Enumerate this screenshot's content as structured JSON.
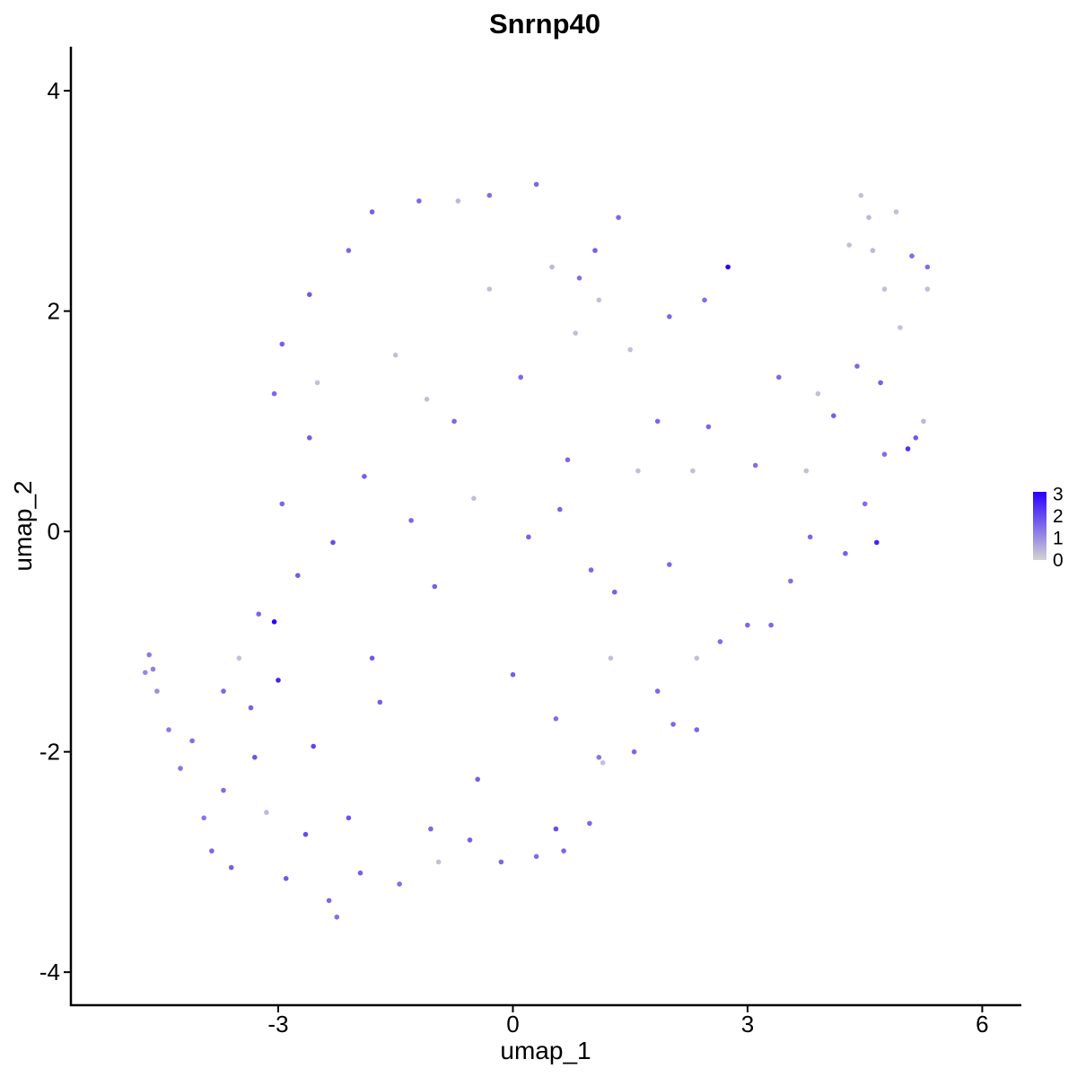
{
  "chart_data": {
    "type": "scatter",
    "title": "Snrnp40",
    "xlabel": "umap_1",
    "ylabel": "umap_2",
    "xlim": [
      -5.65,
      6.5
    ],
    "ylim": [
      -4.3,
      4.4
    ],
    "x_ticks": [
      -3,
      0,
      3,
      6
    ],
    "y_ticks": [
      -4,
      -2,
      0,
      2,
      4
    ],
    "x_tick_labels": [
      "-3",
      "0",
      "3",
      "6"
    ],
    "y_tick_labels": [
      "-4",
      "-2",
      "0",
      "2",
      "4"
    ],
    "grid": false,
    "legend": {
      "placement": "right",
      "type": "color-gradient",
      "low_color": "#d3d3d3",
      "high_color": "#2a00ff",
      "range": [
        0,
        3.1
      ],
      "ticks": [
        3,
        2,
        1,
        0
      ],
      "tick_labels": [
        "3",
        "2",
        "1",
        "0"
      ]
    },
    "colors": {
      "low": "#d3d3d3",
      "high": "#2a00ff"
    },
    "series": [
      {
        "points": [
          {
            "x": -4.7,
            "y": -1.28,
            "v": 1.1
          },
          {
            "x": -4.65,
            "y": -1.12,
            "v": 1.3
          },
          {
            "x": -4.6,
            "y": -1.25,
            "v": 1.2
          },
          {
            "x": -4.55,
            "y": -1.45,
            "v": 1.0
          },
          {
            "x": -4.4,
            "y": -1.8,
            "v": 1.3
          },
          {
            "x": -4.25,
            "y": -2.15,
            "v": 1.4
          },
          {
            "x": -4.1,
            "y": -1.9,
            "v": 1.5
          },
          {
            "x": -3.95,
            "y": -2.6,
            "v": 1.4
          },
          {
            "x": -3.85,
            "y": -2.9,
            "v": 1.6
          },
          {
            "x": -3.7,
            "y": -2.35,
            "v": 1.5
          },
          {
            "x": -3.6,
            "y": -3.05,
            "v": 1.7
          },
          {
            "x": -3.5,
            "y": -1.15,
            "v": 0.3
          },
          {
            "x": -3.35,
            "y": -1.6,
            "v": 1.7
          },
          {
            "x": -3.25,
            "y": -0.75,
            "v": 1.6
          },
          {
            "x": -3.05,
            "y": -0.82,
            "v": 3.1
          },
          {
            "x": -3.0,
            "y": -1.35,
            "v": 2.6
          },
          {
            "x": -3.15,
            "y": -2.55,
            "v": 0.4
          },
          {
            "x": -2.9,
            "y": -3.15,
            "v": 1.8
          },
          {
            "x": -2.75,
            "y": -0.4,
            "v": 1.8
          },
          {
            "x": -2.55,
            "y": -1.95,
            "v": 2.1
          },
          {
            "x": -2.35,
            "y": -3.35,
            "v": 1.6
          },
          {
            "x": -2.25,
            "y": -3.5,
            "v": 1.5
          },
          {
            "x": -2.1,
            "y": -2.6,
            "v": 1.9
          },
          {
            "x": -1.95,
            "y": -3.1,
            "v": 1.7
          },
          {
            "x": -1.45,
            "y": -3.2,
            "v": 1.5
          },
          {
            "x": -1.05,
            "y": -2.7,
            "v": 1.6
          },
          {
            "x": -0.95,
            "y": -3.0,
            "v": 0.3
          },
          {
            "x": -0.55,
            "y": -2.8,
            "v": 1.7
          },
          {
            "x": -0.15,
            "y": -3.0,
            "v": 1.6
          },
          {
            "x": 0.3,
            "y": -2.95,
            "v": 1.5
          },
          {
            "x": 0.55,
            "y": -2.7,
            "v": 2.0
          },
          {
            "x": 0.65,
            "y": -2.9,
            "v": 1.6
          },
          {
            "x": 0.98,
            "y": -2.65,
            "v": 1.6
          },
          {
            "x": 1.1,
            "y": -2.05,
            "v": 1.4
          },
          {
            "x": 1.15,
            "y": -2.1,
            "v": 0.3
          },
          {
            "x": 1.25,
            "y": -1.15,
            "v": 0.3
          },
          {
            "x": 1.55,
            "y": -2.0,
            "v": 1.6
          },
          {
            "x": 1.85,
            "y": -1.45,
            "v": 1.6
          },
          {
            "x": 2.05,
            "y": -1.75,
            "v": 1.6
          },
          {
            "x": 2.35,
            "y": -1.15,
            "v": 0.3
          },
          {
            "x": 2.35,
            "y": -1.8,
            "v": 1.6
          },
          {
            "x": 2.65,
            "y": -1.0,
            "v": 1.5
          },
          {
            "x": 3.0,
            "y": -0.85,
            "v": 1.6
          },
          {
            "x": 3.3,
            "y": -0.85,
            "v": 1.6
          },
          {
            "x": 3.55,
            "y": -0.45,
            "v": 1.5
          },
          {
            "x": 3.8,
            "y": -0.05,
            "v": 1.6
          },
          {
            "x": 4.25,
            "y": -0.2,
            "v": 1.7
          },
          {
            "x": 4.5,
            "y": 0.25,
            "v": 1.5
          },
          {
            "x": 4.65,
            "y": -0.1,
            "v": 2.6
          },
          {
            "x": 4.75,
            "y": 0.7,
            "v": 1.5
          },
          {
            "x": 5.05,
            "y": 0.75,
            "v": 2.4
          },
          {
            "x": 5.15,
            "y": 0.85,
            "v": 1.8
          },
          {
            "x": 5.25,
            "y": 1.0,
            "v": 0.4
          },
          {
            "x": 5.3,
            "y": 2.2,
            "v": 0.3
          },
          {
            "x": 5.3,
            "y": 2.4,
            "v": 1.5
          },
          {
            "x": 5.1,
            "y": 2.5,
            "v": 1.5
          },
          {
            "x": 4.9,
            "y": 2.9,
            "v": 0.3
          },
          {
            "x": 4.45,
            "y": 3.05,
            "v": 0.3
          },
          {
            "x": 4.55,
            "y": 2.85,
            "v": 0.4
          },
          {
            "x": 4.3,
            "y": 2.6,
            "v": 0.3
          },
          {
            "x": 4.75,
            "y": 2.2,
            "v": 0.3
          },
          {
            "x": 4.95,
            "y": 1.85,
            "v": 0.3
          },
          {
            "x": 4.6,
            "y": 2.55,
            "v": 0.4
          },
          {
            "x": 2.75,
            "y": 2.4,
            "v": 3.1
          },
          {
            "x": 2.45,
            "y": 2.1,
            "v": 1.5
          },
          {
            "x": 2.0,
            "y": 1.95,
            "v": 1.6
          },
          {
            "x": 1.5,
            "y": 1.65,
            "v": 0.3
          },
          {
            "x": 0.8,
            "y": 1.8,
            "v": 0.3
          },
          {
            "x": 1.1,
            "y": 2.1,
            "v": 0.3
          },
          {
            "x": 0.5,
            "y": 2.4,
            "v": 0.4
          },
          {
            "x": 0.3,
            "y": 3.15,
            "v": 1.6
          },
          {
            "x": -0.3,
            "y": 3.05,
            "v": 1.5
          },
          {
            "x": -0.7,
            "y": 3.0,
            "v": 0.4
          },
          {
            "x": -1.2,
            "y": 3.0,
            "v": 1.6
          },
          {
            "x": -1.8,
            "y": 2.9,
            "v": 1.7
          },
          {
            "x": -2.1,
            "y": 2.55,
            "v": 1.6
          },
          {
            "x": -2.6,
            "y": 2.15,
            "v": 1.8
          },
          {
            "x": -2.95,
            "y": 1.7,
            "v": 1.7
          },
          {
            "x": -3.05,
            "y": 1.25,
            "v": 1.6
          },
          {
            "x": -2.5,
            "y": 1.35,
            "v": 0.3
          },
          {
            "x": -1.5,
            "y": 1.6,
            "v": 0.3
          },
          {
            "x": -1.1,
            "y": 1.2,
            "v": 0.3
          },
          {
            "x": -0.3,
            "y": 2.2,
            "v": 0.3
          },
          {
            "x": 0.85,
            "y": 2.3,
            "v": 1.5
          },
          {
            "x": 1.35,
            "y": 2.85,
            "v": 1.6
          },
          {
            "x": 1.05,
            "y": 2.55,
            "v": 1.7
          },
          {
            "x": 0.7,
            "y": 0.65,
            "v": 1.6
          },
          {
            "x": 0.2,
            "y": -0.05,
            "v": 1.7
          },
          {
            "x": -0.5,
            "y": 0.3,
            "v": 0.3
          },
          {
            "x": -1.0,
            "y": -0.5,
            "v": 1.7
          },
          {
            "x": -1.8,
            "y": -1.15,
            "v": 1.8
          },
          {
            "x": -2.3,
            "y": -0.1,
            "v": 2.0
          },
          {
            "x": 1.0,
            "y": -0.35,
            "v": 1.6
          },
          {
            "x": 1.6,
            "y": 0.55,
            "v": 0.3
          },
          {
            "x": 1.85,
            "y": 1.0,
            "v": 1.6
          },
          {
            "x": 2.3,
            "y": 0.55,
            "v": 0.3
          },
          {
            "x": 2.5,
            "y": 0.95,
            "v": 1.6
          },
          {
            "x": 3.1,
            "y": 0.6,
            "v": 1.5
          },
          {
            "x": 3.4,
            "y": 1.4,
            "v": 1.6
          },
          {
            "x": 3.9,
            "y": 1.25,
            "v": 0.3
          },
          {
            "x": 3.75,
            "y": 0.55,
            "v": 0.3
          },
          {
            "x": 4.1,
            "y": 1.05,
            "v": 1.7
          },
          {
            "x": 4.4,
            "y": 1.5,
            "v": 1.6
          },
          {
            "x": 4.7,
            "y": 1.35,
            "v": 1.7
          },
          {
            "x": 0.0,
            "y": -1.3,
            "v": 1.7
          },
          {
            "x": 0.55,
            "y": -1.7,
            "v": 1.5
          },
          {
            "x": -0.45,
            "y": -2.25,
            "v": 1.7
          },
          {
            "x": -1.7,
            "y": -1.55,
            "v": 1.7
          },
          {
            "x": -3.3,
            "y": -2.05,
            "v": 1.9
          },
          {
            "x": -2.65,
            "y": -2.75,
            "v": 2.0
          },
          {
            "x": -3.7,
            "y": -1.45,
            "v": 1.6
          },
          {
            "x": -2.95,
            "y": 0.25,
            "v": 1.6
          },
          {
            "x": -2.6,
            "y": 0.85,
            "v": 1.8
          },
          {
            "x": -1.9,
            "y": 0.5,
            "v": 1.7
          },
          {
            "x": -1.3,
            "y": 0.1,
            "v": 1.6
          },
          {
            "x": -0.75,
            "y": 1.0,
            "v": 1.6
          },
          {
            "x": 0.1,
            "y": 1.4,
            "v": 1.6
          },
          {
            "x": 0.6,
            "y": 0.2,
            "v": 1.6
          },
          {
            "x": 1.3,
            "y": -0.55,
            "v": 1.7
          },
          {
            "x": 2.0,
            "y": -0.3,
            "v": 1.6
          }
        ]
      }
    ]
  }
}
